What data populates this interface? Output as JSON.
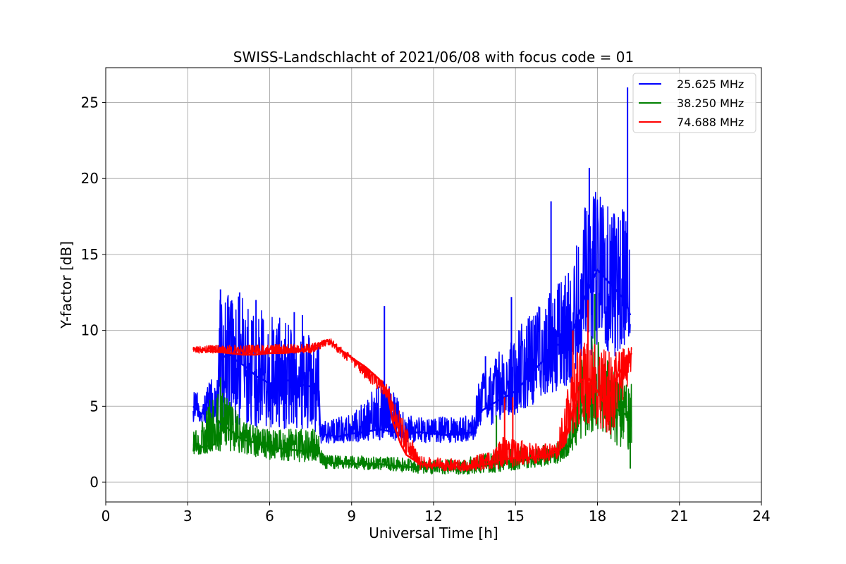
{
  "chart_data": {
    "type": "line",
    "title": "SWISS-Landschlacht of 2021/06/08 with focus code = 01",
    "xlabel": "Universal Time [h]",
    "ylabel": "Y-factor [dB]",
    "xlim": [
      0,
      24
    ],
    "ylim": [
      -1.3,
      27.3
    ],
    "xticks": [
      0,
      3,
      6,
      9,
      12,
      15,
      18,
      21,
      24
    ],
    "yticks": [
      0,
      5,
      10,
      15,
      20,
      25
    ],
    "grid": true,
    "legend_position": "top-right",
    "series": [
      {
        "name": "25.625 MHz",
        "color": "#0000ff",
        "points": [
          [
            3.2,
            5.0
          ],
          [
            3.5,
            4.5
          ],
          [
            3.8,
            5.0
          ],
          [
            4.1,
            4.5
          ],
          [
            4.15,
            8.0
          ],
          [
            4.5,
            8.5
          ],
          [
            4.8,
            8.0
          ],
          [
            5.2,
            7.5
          ],
          [
            5.5,
            7.0
          ],
          [
            6.0,
            6.5
          ],
          [
            6.5,
            6.8
          ],
          [
            7.0,
            6.5
          ],
          [
            7.5,
            6.3
          ],
          [
            7.8,
            6.0
          ],
          [
            7.85,
            3.2
          ],
          [
            8.5,
            3.0
          ],
          [
            9.0,
            3.2
          ],
          [
            9.5,
            3.3
          ],
          [
            10.0,
            3.5
          ],
          [
            10.5,
            3.3
          ],
          [
            11.0,
            3.2
          ],
          [
            11.5,
            3.3
          ],
          [
            12.0,
            3.2
          ],
          [
            12.5,
            3.1
          ],
          [
            13.0,
            3.2
          ],
          [
            13.5,
            3.3
          ],
          [
            13.6,
            4.5
          ],
          [
            14.0,
            5.0
          ],
          [
            14.5,
            5.5
          ],
          [
            15.0,
            6.0
          ],
          [
            15.5,
            7.0
          ],
          [
            16.0,
            8.0
          ],
          [
            16.5,
            9.0
          ],
          [
            17.0,
            9.5
          ],
          [
            17.5,
            12.0
          ],
          [
            18.0,
            14.0
          ],
          [
            18.5,
            13.0
          ],
          [
            19.0,
            12.0
          ],
          [
            19.2,
            11.0
          ]
        ],
        "spread": [
          [
            3.2,
            4.0,
            6.0
          ],
          [
            4.1,
            3.8,
            7.0
          ],
          [
            4.15,
            3.5,
            12.5
          ],
          [
            5.5,
            3.5,
            12.0
          ],
          [
            6.0,
            3.5,
            11.0
          ],
          [
            7.0,
            3.5,
            10.5
          ],
          [
            7.8,
            3.3,
            9.5
          ],
          [
            7.85,
            2.5,
            4.0
          ],
          [
            9.0,
            2.6,
            4.5
          ],
          [
            10.2,
            2.8,
            7.0
          ],
          [
            11.0,
            2.6,
            4.5
          ],
          [
            12.0,
            2.6,
            4.3
          ],
          [
            13.0,
            2.6,
            4.3
          ],
          [
            13.5,
            2.8,
            4.5
          ],
          [
            13.6,
            3.5,
            7.0
          ],
          [
            14.5,
            4.0,
            9.0
          ],
          [
            15.0,
            4.5,
            10.0
          ],
          [
            16.0,
            5.5,
            12.0
          ],
          [
            17.0,
            6.5,
            14.0
          ],
          [
            17.5,
            8.0,
            19.0
          ],
          [
            18.0,
            8.5,
            19.5
          ],
          [
            18.5,
            8.0,
            18.0
          ],
          [
            19.0,
            9.0,
            18.0
          ],
          [
            19.25,
            10.0,
            17.5
          ]
        ],
        "spikes": [
          [
            4.2,
            12.7
          ],
          [
            4.9,
            12.5
          ],
          [
            5.5,
            12.0
          ],
          [
            6.9,
            11.2
          ],
          [
            7.2,
            11.0
          ],
          [
            10.2,
            11.6
          ],
          [
            13.9,
            8.3
          ],
          [
            14.85,
            12.2
          ],
          [
            16.3,
            18.5
          ],
          [
            17.7,
            20.7
          ],
          [
            18.2,
            18.0
          ],
          [
            18.6,
            17.7
          ],
          [
            19.1,
            26.0
          ]
        ]
      },
      {
        "name": "38.250 MHz",
        "color": "#008000",
        "points": [
          [
            3.2,
            2.5
          ],
          [
            3.5,
            2.3
          ],
          [
            4.0,
            2.5
          ],
          [
            4.15,
            4.0
          ],
          [
            4.5,
            3.5
          ],
          [
            5.0,
            2.8
          ],
          [
            5.5,
            2.6
          ],
          [
            6.0,
            2.3
          ],
          [
            6.5,
            2.2
          ],
          [
            7.0,
            2.1
          ],
          [
            7.5,
            2.0
          ],
          [
            7.8,
            2.0
          ],
          [
            8.0,
            1.3
          ],
          [
            9.0,
            1.2
          ],
          [
            10.0,
            1.2
          ],
          [
            11.0,
            1.0
          ],
          [
            12.0,
            1.0
          ],
          [
            13.0,
            1.0
          ],
          [
            14.0,
            1.1
          ],
          [
            15.0,
            1.4
          ],
          [
            16.0,
            1.6
          ],
          [
            16.5,
            1.8
          ],
          [
            17.0,
            2.5
          ],
          [
            17.5,
            5.0
          ],
          [
            18.0,
            6.0
          ],
          [
            18.5,
            5.0
          ],
          [
            19.0,
            4.5
          ],
          [
            19.25,
            4.0
          ]
        ],
        "spread": [
          [
            3.2,
            1.8,
            3.5
          ],
          [
            4.15,
            2.0,
            6.5
          ],
          [
            4.5,
            2.0,
            5.5
          ],
          [
            5.0,
            1.8,
            4.0
          ],
          [
            6.0,
            1.5,
            3.5
          ],
          [
            7.5,
            1.3,
            3.5
          ],
          [
            7.8,
            1.3,
            3.5
          ],
          [
            8.0,
            0.9,
            1.8
          ],
          [
            10.0,
            0.8,
            1.7
          ],
          [
            12.0,
            0.5,
            1.5
          ],
          [
            13.0,
            0.5,
            1.5
          ],
          [
            14.0,
            0.6,
            2.0
          ],
          [
            15.0,
            0.8,
            2.3
          ],
          [
            16.5,
            1.2,
            2.5
          ],
          [
            17.0,
            1.8,
            4.5
          ],
          [
            17.5,
            3.0,
            9.0
          ],
          [
            18.0,
            3.5,
            10.0
          ],
          [
            18.5,
            2.5,
            7.5
          ],
          [
            19.25,
            2.0,
            6.5
          ]
        ],
        "spikes": [
          [
            4.2,
            6.9
          ],
          [
            14.3,
            4.4
          ],
          [
            17.9,
            12.4
          ],
          [
            19.2,
            0.9
          ]
        ]
      },
      {
        "name": "74.688 MHz",
        "color": "#ff0000",
        "points": [
          [
            3.2,
            8.8
          ],
          [
            3.5,
            8.7
          ],
          [
            4.0,
            8.6
          ],
          [
            4.5,
            8.5
          ],
          [
            5.0,
            8.4
          ],
          [
            5.5,
            8.4
          ],
          [
            6.0,
            8.5
          ],
          [
            6.5,
            8.5
          ],
          [
            7.0,
            8.6
          ],
          [
            7.5,
            8.8
          ],
          [
            8.0,
            9.3
          ],
          [
            8.2,
            9.3
          ],
          [
            8.5,
            8.8
          ],
          [
            9.0,
            8.2
          ],
          [
            9.5,
            7.6
          ],
          [
            10.0,
            6.8
          ],
          [
            10.3,
            6.0
          ],
          [
            10.5,
            4.0
          ],
          [
            10.8,
            2.5
          ],
          [
            11.0,
            1.8
          ],
          [
            11.5,
            1.2
          ],
          [
            12.0,
            1.1
          ],
          [
            12.5,
            1.1
          ],
          [
            13.0,
            1.0
          ],
          [
            13.5,
            1.1
          ],
          [
            14.0,
            1.2
          ],
          [
            14.5,
            1.5
          ],
          [
            15.0,
            1.6
          ],
          [
            15.5,
            1.6
          ],
          [
            16.0,
            1.7
          ],
          [
            16.5,
            2.0
          ],
          [
            16.8,
            2.5
          ],
          [
            17.0,
            4.0
          ],
          [
            17.3,
            6.5
          ],
          [
            17.6,
            7.0
          ],
          [
            18.0,
            6.0
          ],
          [
            18.3,
            5.0
          ],
          [
            18.6,
            6.5
          ],
          [
            19.0,
            7.8
          ],
          [
            19.25,
            8.5
          ]
        ],
        "spread": [
          [
            3.2,
            8.5,
            9.0
          ],
          [
            7.5,
            8.5,
            9.1
          ],
          [
            8.2,
            9.0,
            9.5
          ],
          [
            10.3,
            5.5,
            6.5
          ],
          [
            11.5,
            0.8,
            1.7
          ],
          [
            13.0,
            0.7,
            1.5
          ],
          [
            14.0,
            0.8,
            2.0
          ],
          [
            14.5,
            0.9,
            3.0
          ],
          [
            15.0,
            1.0,
            2.8
          ],
          [
            16.5,
            1.5,
            2.5
          ],
          [
            17.0,
            3.0,
            7.0
          ],
          [
            17.5,
            4.0,
            10.0
          ],
          [
            18.0,
            3.5,
            9.0
          ],
          [
            18.5,
            3.0,
            8.5
          ],
          [
            19.25,
            7.0,
            9.0
          ]
        ],
        "spikes": [
          [
            14.6,
            5.6
          ],
          [
            14.9,
            5.6
          ],
          [
            17.1,
            10.0
          ],
          [
            17.65,
            12.0
          ]
        ]
      }
    ]
  }
}
